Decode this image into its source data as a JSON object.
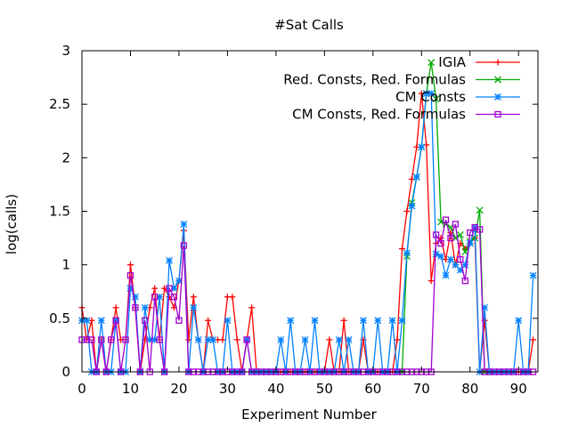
{
  "chart_data": {
    "type": "line",
    "title": "#Sat Calls",
    "xlabel": "Experiment Number",
    "ylabel": "log(calls)",
    "xlim": [
      0,
      94
    ],
    "ylim": [
      0,
      3
    ],
    "xticks": [
      0,
      10,
      20,
      30,
      40,
      50,
      60,
      70,
      80,
      90
    ],
    "yticks": [
      0,
      0.5,
      1,
      1.5,
      2,
      2.5,
      3
    ],
    "grid": false,
    "legend_position": "top-right",
    "series": [
      {
        "name": "IGIA",
        "color": "#ff0000",
        "marker": "plus",
        "x": [
          0,
          1,
          2,
          3,
          4,
          5,
          6,
          7,
          8,
          9,
          10,
          11,
          12,
          13,
          14,
          15,
          16,
          17,
          18,
          19,
          20,
          21,
          22,
          23,
          24,
          25,
          26,
          27,
          28,
          29,
          30,
          31,
          32,
          33,
          34,
          35,
          36,
          37,
          38,
          39,
          40,
          41,
          42,
          43,
          44,
          45,
          46,
          47,
          48,
          49,
          50,
          51,
          52,
          53,
          54,
          55,
          56,
          57,
          58,
          59,
          60,
          61,
          62,
          63,
          64,
          65,
          66,
          67,
          68,
          69,
          70,
          71,
          72,
          73,
          74,
          75,
          76,
          77,
          78,
          79,
          80,
          81,
          82,
          83,
          84,
          85,
          86,
          87,
          88,
          89,
          90,
          91,
          92,
          93
        ],
        "values": [
          0.6,
          0.3,
          0.48,
          0,
          0.3,
          0,
          0.3,
          0.6,
          0.3,
          0.3,
          1.0,
          0.6,
          0,
          0.3,
          0.6,
          0.78,
          0.3,
          0.78,
          0.7,
          0.6,
          0.85,
          1.32,
          0.3,
          0.7,
          0.3,
          0,
          0.48,
          0.3,
          0.3,
          0.3,
          0.7,
          0.7,
          0.3,
          0,
          0.3,
          0.6,
          0,
          0,
          0,
          0,
          0,
          0,
          0,
          0,
          0,
          0,
          0,
          0,
          0,
          0,
          0,
          0.3,
          0,
          0,
          0.48,
          0,
          0,
          0,
          0.3,
          0,
          0,
          0,
          0,
          0,
          0,
          0.3,
          1.15,
          1.5,
          1.8,
          2.1,
          2.6,
          2.12,
          0.85,
          1.2,
          1.25,
          1.05,
          1.3,
          1.0,
          1.2,
          1.15,
          1.2,
          1.25,
          0,
          0.48,
          0,
          0,
          0,
          0,
          0,
          0,
          0,
          0,
          0,
          0.3
        ]
      },
      {
        "name": "Red. Consts, Red. Formulas",
        "color": "#00aa00",
        "marker": "x",
        "x": [
          66,
          67,
          68,
          69,
          70,
          71,
          72,
          73,
          74,
          75,
          76,
          77,
          78,
          79,
          80,
          81,
          82,
          83
        ],
        "values": [
          0,
          1.08,
          1.58,
          1.82,
          2.1,
          2.6,
          2.89,
          2.55,
          1.4,
          1.38,
          1.35,
          1.25,
          1.28,
          1.12,
          1.22,
          1.25,
          1.51,
          0
        ]
      },
      {
        "name": "CM Consts",
        "color": "#0080ff",
        "marker": "star",
        "x": [
          0,
          1,
          2,
          3,
          4,
          5,
          6,
          7,
          8,
          9,
          10,
          11,
          12,
          13,
          14,
          15,
          16,
          17,
          18,
          19,
          20,
          21,
          22,
          23,
          24,
          25,
          26,
          27,
          28,
          29,
          30,
          31,
          32,
          33,
          34,
          35,
          36,
          37,
          38,
          39,
          40,
          41,
          42,
          43,
          44,
          45,
          46,
          47,
          48,
          49,
          50,
          51,
          52,
          53,
          54,
          55,
          56,
          57,
          58,
          59,
          60,
          61,
          62,
          63,
          64,
          65,
          66,
          67,
          68,
          69,
          70,
          71,
          72,
          73,
          74,
          75,
          76,
          77,
          78,
          79,
          80,
          81,
          82,
          83,
          84,
          85,
          86,
          87,
          88,
          89,
          90,
          91,
          92,
          93
        ],
        "values": [
          0.48,
          0.48,
          0,
          0,
          0.48,
          0,
          0,
          0.48,
          0,
          0,
          0.78,
          0.7,
          0,
          0.6,
          0.3,
          0.3,
          0.7,
          0,
          1.04,
          0.78,
          0.85,
          1.38,
          0,
          0.6,
          0.3,
          0,
          0.3,
          0.3,
          0,
          0,
          0.48,
          0,
          0,
          0,
          0.3,
          0,
          0,
          0,
          0,
          0,
          0,
          0.3,
          0,
          0.48,
          0,
          0,
          0.3,
          0,
          0.48,
          0,
          0,
          0,
          0,
          0.3,
          0,
          0.3,
          0,
          0,
          0.48,
          0,
          0,
          0.48,
          0,
          0,
          0.48,
          0,
          0.48,
          1.11,
          1.55,
          1.82,
          2.1,
          2.6,
          2.6,
          1.1,
          1.08,
          0.9,
          1.05,
          1.0,
          0.95,
          1.0,
          1.2,
          1.35,
          0,
          0.6,
          0,
          0,
          0,
          0,
          0,
          0,
          0.48,
          0,
          0,
          0.9
        ]
      },
      {
        "name": "CM Consts, Red. Formulas",
        "color": "#a000d0",
        "marker": "square",
        "x": [
          0,
          1,
          2,
          3,
          4,
          5,
          6,
          7,
          8,
          9,
          10,
          11,
          12,
          13,
          14,
          15,
          16,
          17,
          18,
          19,
          20,
          21,
          22,
          23,
          24,
          25,
          26,
          27,
          28,
          29,
          30,
          31,
          32,
          33,
          34,
          35,
          36,
          37,
          38,
          39,
          40,
          41,
          42,
          43,
          44,
          45,
          46,
          47,
          48,
          49,
          50,
          51,
          52,
          53,
          54,
          55,
          56,
          57,
          58,
          59,
          60,
          61,
          62,
          63,
          64,
          65,
          66,
          67,
          68,
          69,
          70,
          71,
          72,
          73,
          74,
          75,
          76,
          77,
          78,
          79,
          80,
          81,
          82,
          83,
          84,
          85,
          86,
          87,
          88,
          89,
          90,
          91,
          92,
          93
        ],
        "values": [
          0.3,
          0.3,
          0.3,
          0,
          0.3,
          0,
          0.3,
          0.48,
          0,
          0.3,
          0.9,
          0.6,
          0,
          0.48,
          0,
          0.7,
          0.3,
          0,
          0.78,
          0.7,
          0.48,
          1.18,
          0,
          0,
          0,
          0,
          0,
          0,
          0,
          0,
          0,
          0,
          0,
          0,
          0.3,
          0,
          0,
          0,
          0,
          0,
          0,
          0,
          0,
          0,
          0,
          0,
          0,
          0,
          0,
          0,
          0,
          0,
          0,
          0,
          0,
          0,
          0,
          0,
          0,
          0,
          0,
          0,
          0,
          0,
          0,
          0,
          0,
          0,
          0,
          0,
          0,
          0,
          0,
          1.28,
          1.2,
          1.42,
          1.25,
          1.38,
          1.05,
          0.85,
          1.3,
          1.35,
          1.33,
          0,
          0,
          0,
          0,
          0,
          0,
          0,
          0,
          0,
          0,
          0
        ]
      }
    ]
  }
}
